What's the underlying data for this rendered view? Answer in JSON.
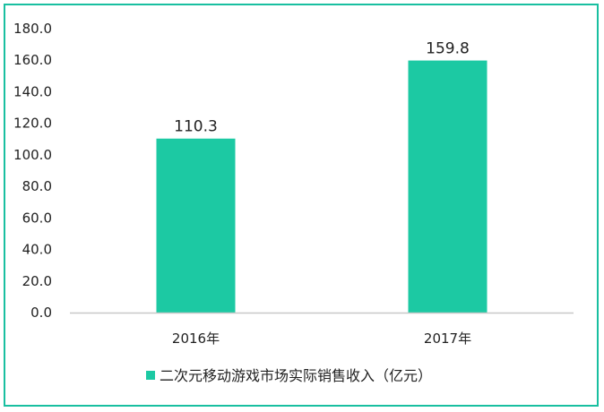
{
  "chart_data": {
    "type": "bar",
    "categories": [
      "2016年",
      "2017年"
    ],
    "series": [
      {
        "name": "二次元移动游戏市场实际销售收入（亿元）",
        "values": [
          110.3,
          159.8
        ]
      }
    ],
    "data_labels": [
      "110.3",
      "159.8"
    ],
    "yticks": [
      "0.0",
      "20.0",
      "40.0",
      "60.0",
      "80.0",
      "100.0",
      "120.0",
      "140.0",
      "160.0",
      "180.0"
    ],
    "ylim": [
      0,
      180
    ],
    "grid": false,
    "legend_position": "bottom",
    "colors": {
      "bar": "#1cc9a3",
      "frame": "#19bfa0",
      "axis": "#c8c8c8"
    }
  }
}
